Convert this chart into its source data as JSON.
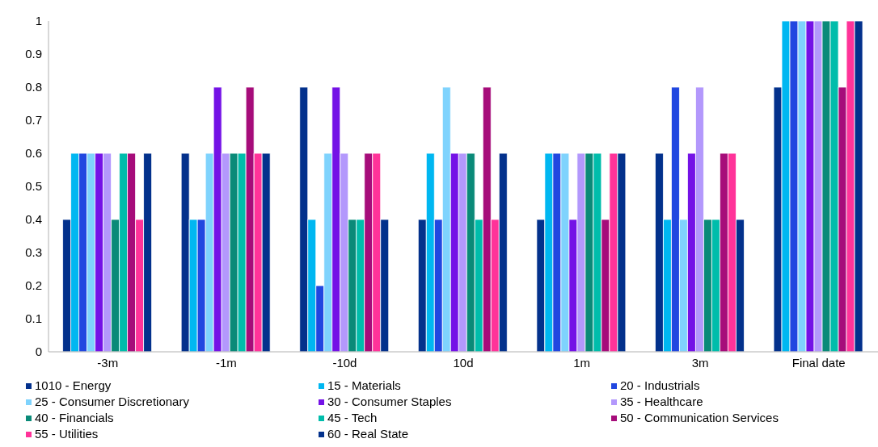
{
  "chart_data": {
    "type": "bar",
    "categories": [
      "-3m",
      "-1m",
      "-10d",
      "10d",
      "1m",
      "3m",
      "Final date"
    ],
    "ylim": [
      0,
      1
    ],
    "yticks": [
      0,
      0.1,
      0.2,
      0.3,
      0.4,
      0.5,
      0.6,
      0.7,
      0.8,
      0.9,
      1
    ],
    "grid": false,
    "legend": "bottom",
    "series": [
      {
        "name": "1010 - Energy",
        "color": "#03318c",
        "values": [
          0.4,
          0.6,
          0.8,
          0.4,
          0.4,
          0.6,
          0.8
        ]
      },
      {
        "name": "15 - Materials",
        "color": "#00b7f1",
        "values": [
          0.6,
          0.4,
          0.4,
          0.6,
          0.6,
          0.4,
          1
        ]
      },
      {
        "name": "20 - Industrials",
        "color": "#2147e0",
        "values": [
          0.6,
          0.4,
          0.2,
          0.4,
          0.6,
          0.8,
          1
        ]
      },
      {
        "name": "25 - Consumer Discretionary",
        "color": "#7fd3fd",
        "values": [
          0.6,
          0.6,
          0.6,
          0.8,
          0.6,
          0.4,
          1
        ]
      },
      {
        "name": "30 - Consumer Staples",
        "color": "#7412e6",
        "values": [
          0.6,
          0.8,
          0.8,
          0.6,
          0.4,
          0.6,
          1
        ]
      },
      {
        "name": "35 - Healthcare",
        "color": "#b398fc",
        "values": [
          0.6,
          0.6,
          0.6,
          0.6,
          0.6,
          0.8,
          1
        ]
      },
      {
        "name": "40 - Financials",
        "color": "#0a8a78",
        "values": [
          0.4,
          0.6,
          0.4,
          0.6,
          0.6,
          0.4,
          1
        ]
      },
      {
        "name": "45 - Tech",
        "color": "#00bdab",
        "values": [
          0.6,
          0.6,
          0.4,
          0.4,
          0.6,
          0.4,
          1
        ]
      },
      {
        "name": "50 - Communication Services",
        "color": "#a60c7a",
        "values": [
          0.6,
          0.8,
          0.6,
          0.8,
          0.4,
          0.6,
          0.8
        ]
      },
      {
        "name": "55 - Utilities",
        "color": "#ff3399",
        "values": [
          0.4,
          0.6,
          0.6,
          0.4,
          0.6,
          0.6,
          1
        ]
      },
      {
        "name": "60 - Real State",
        "color": "#03318c",
        "values": [
          0.6,
          0.6,
          0.4,
          0.6,
          0.6,
          0.4,
          1
        ]
      }
    ]
  }
}
